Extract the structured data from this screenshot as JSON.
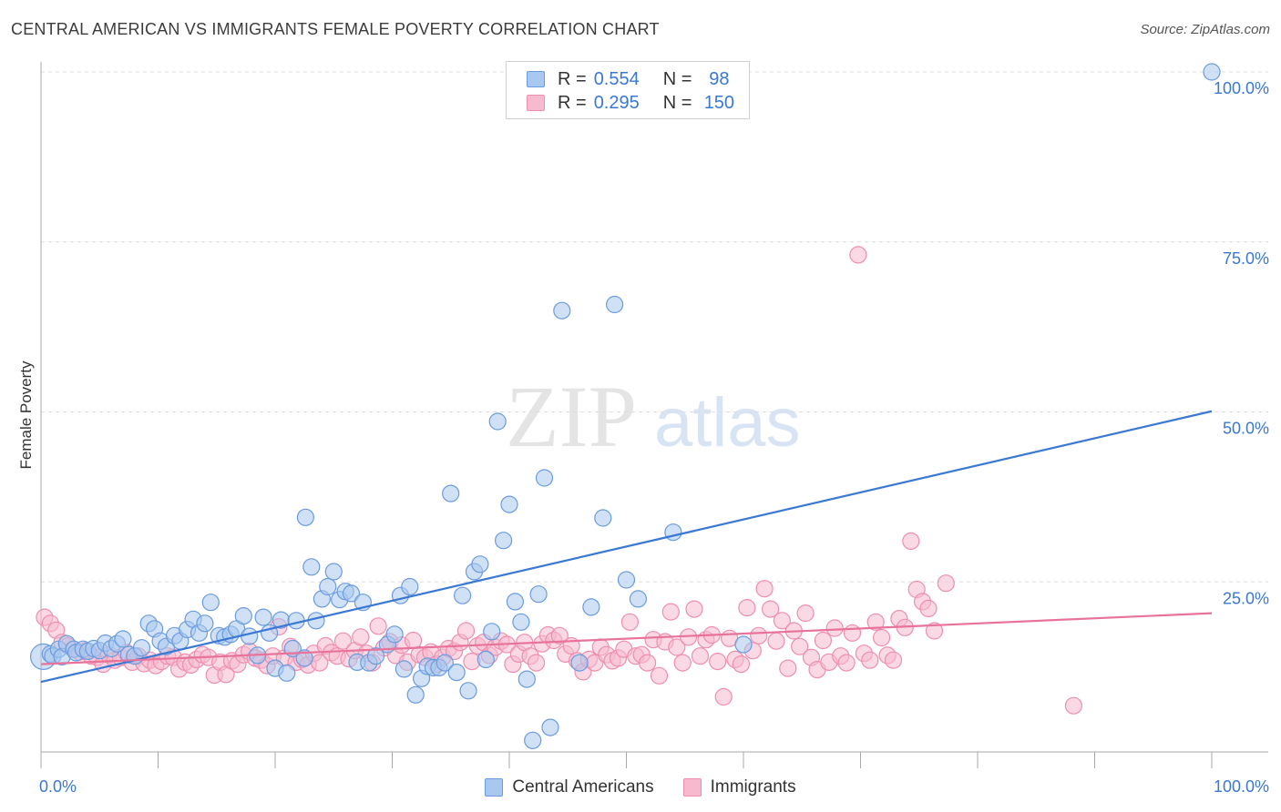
{
  "title": "CENTRAL AMERICAN VS IMMIGRANTS FEMALE POVERTY CORRELATION CHART",
  "source": "Source: ZipAtlas.com",
  "watermark": {
    "zip": "ZIP",
    "atlas": "atlas"
  },
  "legend_top": [
    {
      "r_label": "R =",
      "r_value": "0.554",
      "n_label": "N =",
      "n_value": "98"
    },
    {
      "r_label": "R =",
      "r_value": "0.295",
      "n_label": "N =",
      "n_value": "150"
    }
  ],
  "legend_bottom": [
    {
      "label": "Central Americans"
    },
    {
      "label": "Immigrants"
    }
  ],
  "colors": {
    "blue_fill": "#a9c8ef",
    "blue_stroke": "#6a9be0",
    "blue_line": "#3a78d4",
    "pink_fill": "#f6b9cd",
    "pink_stroke": "#ee8eae",
    "pink_line": "#e8739a",
    "tick_label": "#3a78d4",
    "grid": "#dddddd",
    "axis": "#aaaaaa"
  },
  "chart_data": {
    "type": "scatter",
    "title": "CENTRAL AMERICAN VS IMMIGRANTS FEMALE POVERTY CORRELATION CHART",
    "xlabel": "",
    "ylabel": "Female Poverty",
    "xlim": [
      0,
      100
    ],
    "ylim": [
      0,
      100
    ],
    "x_tick_labels": [
      "0.0%",
      "100.0%"
    ],
    "y_ticks": [
      25,
      50,
      75,
      100
    ],
    "y_tick_labels": [
      "25.0%",
      "50.0%",
      "75.0%",
      "100.0%"
    ],
    "grid": true,
    "legend_position": "top-center",
    "series": [
      {
        "name": "Central Americans",
        "color": "#6a9be0",
        "trend": {
          "x": [
            0,
            100
          ],
          "y": [
            10.3,
            50.1
          ]
        },
        "points": [
          [
            0.2,
            14
          ],
          [
            0.8,
            14.4
          ],
          [
            1,
            14.1
          ],
          [
            1.5,
            15.1
          ],
          [
            1.8,
            14
          ],
          [
            2.2,
            15.9
          ],
          [
            2.8,
            15.1
          ],
          [
            3,
            14.6
          ],
          [
            3.6,
            15.1
          ],
          [
            4,
            14.8
          ],
          [
            4.5,
            15.2
          ],
          [
            5,
            14.9
          ],
          [
            5.5,
            16
          ],
          [
            6,
            15.2
          ],
          [
            6.5,
            15.9
          ],
          [
            7,
            16.6
          ],
          [
            7.5,
            14.3
          ],
          [
            8,
            14.1
          ],
          [
            8.6,
            15.3
          ],
          [
            9.2,
            18.9
          ],
          [
            9.7,
            18.1
          ],
          [
            10.2,
            16.3
          ],
          [
            10.7,
            15.5
          ],
          [
            11.4,
            17.1
          ],
          [
            11.9,
            16.3
          ],
          [
            12.5,
            18
          ],
          [
            13,
            19.5
          ],
          [
            13.5,
            17.5
          ],
          [
            14,
            18.9
          ],
          [
            14.5,
            22
          ],
          [
            15.2,
            17.1
          ],
          [
            15.7,
            16.9
          ],
          [
            16.2,
            17.3
          ],
          [
            16.7,
            18.1
          ],
          [
            17.3,
            20
          ],
          [
            17.8,
            17
          ],
          [
            18.5,
            14.2
          ],
          [
            19,
            19.8
          ],
          [
            19.5,
            17.5
          ],
          [
            20,
            12.3
          ],
          [
            20.5,
            19.4
          ],
          [
            21,
            11.6
          ],
          [
            21.5,
            15.2
          ],
          [
            21.8,
            19.3
          ],
          [
            22.5,
            13.8
          ],
          [
            22.6,
            34.5
          ],
          [
            23.1,
            27.2
          ],
          [
            23.5,
            19.3
          ],
          [
            24,
            22.5
          ],
          [
            24.5,
            24.3
          ],
          [
            25,
            26.5
          ],
          [
            25.5,
            22.4
          ],
          [
            26,
            23.6
          ],
          [
            26.5,
            23.3
          ],
          [
            27,
            13.2
          ],
          [
            27.5,
            22
          ],
          [
            28,
            13.1
          ],
          [
            28.6,
            14.1
          ],
          [
            29.6,
            15.8
          ],
          [
            30.2,
            17.3
          ],
          [
            30.7,
            23
          ],
          [
            31,
            12.2
          ],
          [
            31.5,
            24.3
          ],
          [
            32,
            8.4
          ],
          [
            32.5,
            10.8
          ],
          [
            33,
            12.6
          ],
          [
            33.5,
            12.4
          ],
          [
            34,
            12.4
          ],
          [
            34.5,
            13.1
          ],
          [
            35,
            38
          ],
          [
            35.5,
            11.7
          ],
          [
            36,
            23
          ],
          [
            36.5,
            9
          ],
          [
            37,
            26.5
          ],
          [
            37.5,
            27.6
          ],
          [
            38,
            13.6
          ],
          [
            38.5,
            17.7
          ],
          [
            39,
            48.6
          ],
          [
            39.5,
            31.1
          ],
          [
            40,
            36.4
          ],
          [
            40.5,
            22.1
          ],
          [
            41,
            19.1
          ],
          [
            41.5,
            10.7
          ],
          [
            42,
            1.7
          ],
          [
            42.5,
            23.2
          ],
          [
            43,
            40.3
          ],
          [
            43.5,
            3.6
          ],
          [
            44.5,
            64.9
          ],
          [
            46,
            13.1
          ],
          [
            47,
            21.3
          ],
          [
            48,
            34.4
          ],
          [
            49,
            65.8
          ],
          [
            50,
            25.3
          ],
          [
            51,
            22.5
          ],
          [
            54,
            32.3
          ],
          [
            60,
            15.8
          ],
          [
            100,
            100
          ]
        ]
      },
      {
        "name": "Immigrants",
        "color": "#ee8eae",
        "trend": {
          "x": [
            0,
            100
          ],
          "y": [
            12.9,
            20.4
          ]
        },
        "points": [
          [
            0.3,
            19.8
          ],
          [
            0.8,
            18.9
          ],
          [
            1.3,
            17.9
          ],
          [
            1.8,
            16.1
          ],
          [
            2.3,
            15.6
          ],
          [
            2.8,
            15.1
          ],
          [
            3.3,
            14.7
          ],
          [
            3.8,
            14.9
          ],
          [
            4.3,
            14.1
          ],
          [
            4.8,
            13.9
          ],
          [
            5.3,
            12.9
          ],
          [
            5.8,
            14.3
          ],
          [
            6.3,
            13.5
          ],
          [
            6.8,
            13.9
          ],
          [
            7.3,
            14.6
          ],
          [
            7.8,
            13.2
          ],
          [
            8.3,
            14.1
          ],
          [
            8.8,
            13
          ],
          [
            9.3,
            13.5
          ],
          [
            9.8,
            12.7
          ],
          [
            10.3,
            13.3
          ],
          [
            10.8,
            14.1
          ],
          [
            11.3,
            13.9
          ],
          [
            11.8,
            12.2
          ],
          [
            12.3,
            13.2
          ],
          [
            12.8,
            12.8
          ],
          [
            13.3,
            13.6
          ],
          [
            13.8,
            14.3
          ],
          [
            14.3,
            13.9
          ],
          [
            14.8,
            11.3
          ],
          [
            15.3,
            13.2
          ],
          [
            15.8,
            11.4
          ],
          [
            16.3,
            13.4
          ],
          [
            16.8,
            12.9
          ],
          [
            17.3,
            14.3
          ],
          [
            17.8,
            14.8
          ],
          [
            18.3,
            13.8
          ],
          [
            18.8,
            13.5
          ],
          [
            19.3,
            12.7
          ],
          [
            19.8,
            14.1
          ],
          [
            20.3,
            18.4
          ],
          [
            20.8,
            13.8
          ],
          [
            21.3,
            15.5
          ],
          [
            21.8,
            13.2
          ],
          [
            22.3,
            13.6
          ],
          [
            22.8,
            12.8
          ],
          [
            23.3,
            14.5
          ],
          [
            23.8,
            13.1
          ],
          [
            24.3,
            15.6
          ],
          [
            24.8,
            14.6
          ],
          [
            25.3,
            14.1
          ],
          [
            25.8,
            16.3
          ],
          [
            26.3,
            13.7
          ],
          [
            26.8,
            14.9
          ],
          [
            27.3,
            16.9
          ],
          [
            27.8,
            14.5
          ],
          [
            28.3,
            13.1
          ],
          [
            28.8,
            18.5
          ],
          [
            29.3,
            15.3
          ],
          [
            29.8,
            16.2
          ],
          [
            30.3,
            14.2
          ],
          [
            30.8,
            15.7
          ],
          [
            31.3,
            13.2
          ],
          [
            31.8,
            16.4
          ],
          [
            32.3,
            14.3
          ],
          [
            32.8,
            13.9
          ],
          [
            33.3,
            14.7
          ],
          [
            33.8,
            12.9
          ],
          [
            34.3,
            13.9
          ],
          [
            34.8,
            15.2
          ],
          [
            35.3,
            14.8
          ],
          [
            35.8,
            16.1
          ],
          [
            36.3,
            17.8
          ],
          [
            36.8,
            13.3
          ],
          [
            37.3,
            15.6
          ],
          [
            37.8,
            16.1
          ],
          [
            38.3,
            14.2
          ],
          [
            38.8,
            15.4
          ],
          [
            39.3,
            16.3
          ],
          [
            39.8,
            15.8
          ],
          [
            40.3,
            12.9
          ],
          [
            40.8,
            14.4
          ],
          [
            41.3,
            16.1
          ],
          [
            41.8,
            14.1
          ],
          [
            42.3,
            13.1
          ],
          [
            42.8,
            15.9
          ],
          [
            43.3,
            17.2
          ],
          [
            43.8,
            16.4
          ],
          [
            44.3,
            17.1
          ],
          [
            44.8,
            14.4
          ],
          [
            45.3,
            15.6
          ],
          [
            45.8,
            13.4
          ],
          [
            46.3,
            11.8
          ],
          [
            46.8,
            13.6
          ],
          [
            47.3,
            13.1
          ],
          [
            47.8,
            15.4
          ],
          [
            48.3,
            14.3
          ],
          [
            48.8,
            13.4
          ],
          [
            49.3,
            13.8
          ],
          [
            49.8,
            15.1
          ],
          [
            50.3,
            19.1
          ],
          [
            50.8,
            14.1
          ],
          [
            51.3,
            14.3
          ],
          [
            51.8,
            13.1
          ],
          [
            52.3,
            16.5
          ],
          [
            52.8,
            11.2
          ],
          [
            53.3,
            16.2
          ],
          [
            53.8,
            20.6
          ],
          [
            54.3,
            15.4
          ],
          [
            54.8,
            13.1
          ],
          [
            55.3,
            16.9
          ],
          [
            55.8,
            21
          ],
          [
            56.3,
            14.1
          ],
          [
            56.8,
            16.5
          ],
          [
            57.3,
            17.2
          ],
          [
            57.8,
            13.3
          ],
          [
            58.3,
            8.1
          ],
          [
            58.8,
            16.7
          ],
          [
            59.3,
            13.6
          ],
          [
            59.8,
            12.9
          ],
          [
            60.3,
            21.2
          ],
          [
            60.8,
            14.9
          ],
          [
            61.3,
            17.1
          ],
          [
            61.8,
            24
          ],
          [
            62.3,
            21
          ],
          [
            62.8,
            16.3
          ],
          [
            63.3,
            19.3
          ],
          [
            63.8,
            12.3
          ],
          [
            64.3,
            17.8
          ],
          [
            64.8,
            15.5
          ],
          [
            65.3,
            20.4
          ],
          [
            65.8,
            13.9
          ],
          [
            66.3,
            12.1
          ],
          [
            66.8,
            16.4
          ],
          [
            67.3,
            13.2
          ],
          [
            67.8,
            18.2
          ],
          [
            68.3,
            14.1
          ],
          [
            68.8,
            13.1
          ],
          [
            69.3,
            17.5
          ],
          [
            69.8,
            73.1
          ],
          [
            70.3,
            14.5
          ],
          [
            70.8,
            13.5
          ],
          [
            71.3,
            19.1
          ],
          [
            71.8,
            16.8
          ],
          [
            72.3,
            14.2
          ],
          [
            72.8,
            13.5
          ],
          [
            73.3,
            19.6
          ],
          [
            73.8,
            18.3
          ],
          [
            74.3,
            31
          ],
          [
            74.8,
            23.9
          ],
          [
            75.3,
            22.1
          ],
          [
            75.8,
            21.1
          ],
          [
            76.3,
            17.8
          ],
          [
            77.3,
            24.8
          ],
          [
            88.2,
            6.8
          ]
        ]
      }
    ]
  }
}
